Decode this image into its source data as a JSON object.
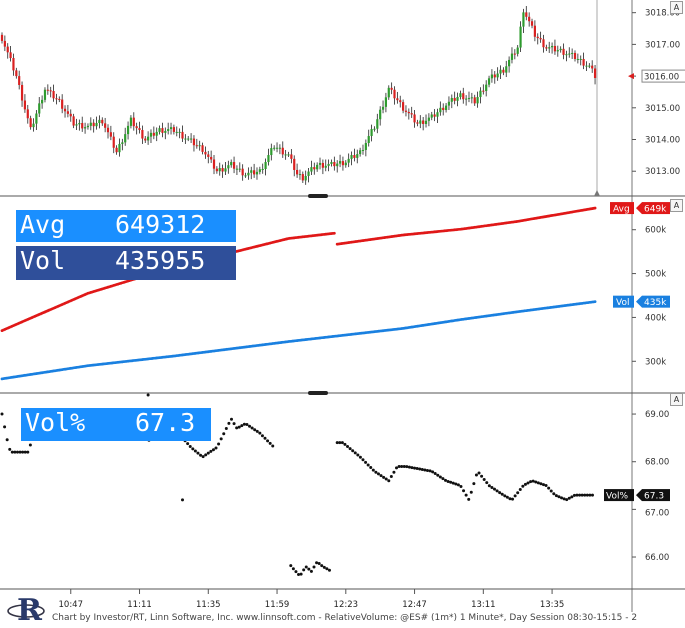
{
  "footer": "Chart by Investor/RT, Linn Software, Inc. www.linnsoft.com - RelativeVolume: @ES# (1m*) 1 Minute*, Day Session 08:30-15:15 - 2",
  "colors": {
    "up": "#2e9b2e",
    "down": "#d92020",
    "avg": "#e01818",
    "vol": "#1a80e0",
    "volpct": "#111111",
    "box_blue": "#1a8fff",
    "box_navy": "#2f4f9a"
  },
  "panels": {
    "price": {
      "tick_labels": [
        "3018.00",
        "3017.00",
        "3016.00",
        "3015.00",
        "3014.00",
        "3013.00"
      ],
      "last_tag": "3016.00",
      "button": "A"
    },
    "volume": {
      "tick_labels": [
        "600k",
        "500k",
        "400k",
        "300k"
      ],
      "avg_tag_label": "Avg",
      "avg_tag_value": "649k",
      "vol_tag_label": "Vol",
      "vol_tag_value": "435k",
      "overlay_avg_label": "Avg",
      "overlay_avg_value": "649312",
      "overlay_vol_label": "Vol",
      "overlay_vol_value": "435955",
      "button": "A"
    },
    "volpct": {
      "tick_labels": [
        "69.00",
        "68.00",
        "67.00",
        "66.00"
      ],
      "tag_label": "Vol%",
      "tag_value": "67.3",
      "overlay_label": "Vol%",
      "overlay_value": "67.3",
      "button": "A"
    }
  },
  "chart_data": [
    {
      "type": "candlestick",
      "x_tick_labels": [
        "10:47",
        "11:11",
        "11:35",
        "11:59",
        "12:23",
        "12:47",
        "13:11",
        "13:35"
      ],
      "ylim": [
        3012.25,
        3018.4
      ],
      "close_anchors": [
        [
          0,
          3017.2
        ],
        [
          5,
          3016.0
        ],
        [
          10,
          3014.3
        ],
        [
          15,
          3015.6
        ],
        [
          20,
          3015.2
        ],
        [
          25,
          3014.5
        ],
        [
          30,
          3014.4
        ],
        [
          35,
          3014.6
        ],
        [
          40,
          3013.6
        ],
        [
          45,
          3014.6
        ],
        [
          50,
          3014.0
        ],
        [
          55,
          3014.3
        ],
        [
          60,
          3014.3
        ],
        [
          65,
          3014.0
        ],
        [
          70,
          3013.7
        ],
        [
          75,
          3013.0
        ],
        [
          80,
          3013.2
        ],
        [
          85,
          3012.9
        ],
        [
          90,
          3013.0
        ],
        [
          95,
          3013.8
        ],
        [
          100,
          3013.5
        ],
        [
          103,
          3012.9
        ],
        [
          105,
          3012.8
        ],
        [
          110,
          3013.2
        ],
        [
          115,
          3013.2
        ],
        [
          120,
          3013.3
        ],
        [
          125,
          3013.6
        ],
        [
          130,
          3014.4
        ],
        [
          135,
          3015.6
        ],
        [
          140,
          3015.0
        ],
        [
          145,
          3014.5
        ],
        [
          150,
          3014.7
        ],
        [
          155,
          3015.1
        ],
        [
          160,
          3015.4
        ],
        [
          165,
          3015.2
        ],
        [
          170,
          3015.9
        ],
        [
          175,
          3016.2
        ],
        [
          180,
          3016.9
        ],
        [
          182,
          3018.1
        ],
        [
          186,
          3017.3
        ],
        [
          190,
          3016.9
        ],
        [
          195,
          3016.8
        ],
        [
          200,
          3016.6
        ],
        [
          205,
          3016.3
        ],
        [
          207,
          3016.0
        ]
      ]
    },
    {
      "type": "scatter",
      "series": [
        {
          "name": "Avg",
          "x": [
            0,
            30,
            60,
            100,
            116,
            117,
            140,
            160,
            180,
            207
          ],
          "y": [
            370000,
            455000,
            515000,
            580000,
            592000,
            567000,
            588000,
            601000,
            619000,
            649312
          ]
        },
        {
          "name": "Vol",
          "x": [
            0,
            30,
            60,
            100,
            140,
            160,
            180,
            207
          ],
          "y": [
            260000,
            290000,
            312000,
            345000,
            375000,
            395000,
            413000,
            435955
          ]
        }
      ],
      "ylim": [
        230000,
        670000
      ],
      "tick_values": [
        600000,
        500000,
        400000,
        300000
      ]
    },
    {
      "type": "scatter",
      "series": [
        {
          "name": "Vol%",
          "x": [
            0,
            2,
            3,
            6,
            9,
            12,
            25,
            28,
            33,
            45,
            52,
            60,
            63,
            66,
            70,
            75,
            80,
            82,
            85,
            90,
            95,
            100,
            101,
            104,
            106,
            108,
            110,
            112,
            115,
            117,
            119,
            121,
            125,
            130,
            135,
            138,
            141,
            150,
            155,
            160,
            163,
            166,
            170,
            175,
            178,
            182,
            185,
            190,
            193,
            197,
            200,
            203,
            207
          ],
          "y": [
            69.0,
            68.4,
            68.2,
            68.2,
            68.2,
            68.7,
            68.9,
            68.9,
            68.9,
            68.9,
            68.4,
            68.8,
            68.5,
            68.3,
            68.1,
            68.3,
            68.9,
            68.7,
            68.8,
            68.6,
            68.3,
            65.9,
            65.8,
            65.6,
            65.8,
            65.7,
            65.9,
            65.8,
            65.7,
            68.4,
            68.4,
            68.3,
            68.1,
            67.8,
            67.6,
            67.9,
            67.9,
            67.8,
            67.6,
            67.5,
            67.2,
            67.8,
            67.5,
            67.3,
            67.2,
            67.5,
            67.6,
            67.5,
            67.3,
            67.2,
            67.3,
            67.3,
            67.3
          ]
        }
      ],
      "ylim": [
        65.35,
        69.4
      ],
      "tick_values": [
        69,
        68,
        67,
        66
      ]
    }
  ]
}
